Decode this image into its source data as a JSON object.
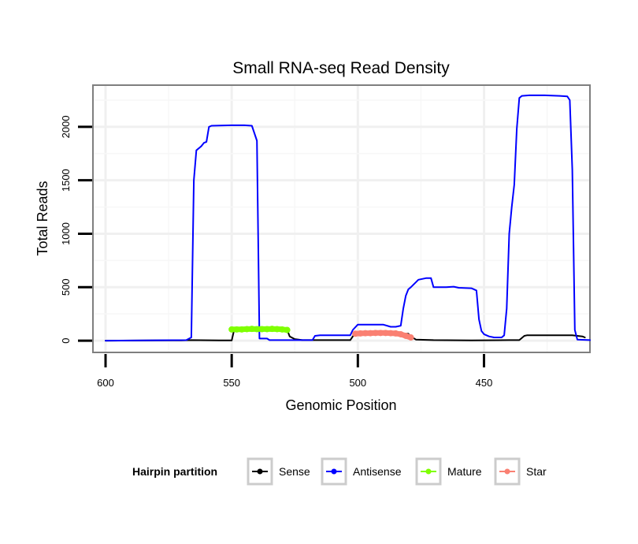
{
  "chart_data": {
    "type": "line",
    "title": "Small RNA-seq Read Density",
    "xlabel": "Genomic Position",
    "ylabel": "Total Reads",
    "x_reversed": true,
    "xlim": [
      605,
      408
    ],
    "ylim": [
      -110,
      2390
    ],
    "x_ticks": [
      600,
      550,
      500,
      450
    ],
    "y_ticks": [
      0,
      500,
      1000,
      1500,
      2000
    ],
    "legend": {
      "title": "Hairpin partition",
      "position": "bottom",
      "entries": [
        "Sense",
        "Antisense",
        "Mature",
        "Star"
      ]
    },
    "series": [
      {
        "name": "Sense",
        "color": "#000000",
        "markers": false,
        "points": [
          [
            600,
            0
          ],
          [
            580,
            2
          ],
          [
            570,
            3
          ],
          [
            566,
            5
          ],
          [
            555,
            3
          ],
          [
            550,
            2
          ],
          [
            549,
            105
          ],
          [
            540,
            105
          ],
          [
            530,
            105
          ],
          [
            528,
            100
          ],
          [
            527,
            40
          ],
          [
            525,
            15
          ],
          [
            522,
            5
          ],
          [
            518,
            5
          ],
          [
            510,
            5
          ],
          [
            503,
            5
          ],
          [
            502,
            40
          ],
          [
            501,
            65
          ],
          [
            495,
            65
          ],
          [
            480,
            65
          ],
          [
            479,
            40
          ],
          [
            477,
            10
          ],
          [
            470,
            5
          ],
          [
            455,
            3
          ],
          [
            440,
            5
          ],
          [
            436,
            5
          ],
          [
            434,
            45
          ],
          [
            433,
            50
          ],
          [
            425,
            50
          ],
          [
            415,
            50
          ],
          [
            411,
            40
          ],
          [
            410,
            30
          ]
        ]
      },
      {
        "name": "Antisense",
        "color": "#0000ff",
        "markers": false,
        "points": [
          [
            600,
            0
          ],
          [
            568,
            5
          ],
          [
            566,
            30
          ],
          [
            565,
            1500
          ],
          [
            564,
            1780
          ],
          [
            562,
            1820
          ],
          [
            561,
            1850
          ],
          [
            560,
            1860
          ],
          [
            559,
            2000
          ],
          [
            558,
            2010
          ],
          [
            550,
            2015
          ],
          [
            545,
            2015
          ],
          [
            542,
            2010
          ],
          [
            540,
            1870
          ],
          [
            539,
            20
          ],
          [
            536,
            20
          ],
          [
            535,
            5
          ],
          [
            525,
            5
          ],
          [
            518,
            5
          ],
          [
            517,
            45
          ],
          [
            515,
            50
          ],
          [
            505,
            50
          ],
          [
            503,
            50
          ],
          [
            502,
            100
          ],
          [
            500,
            150
          ],
          [
            490,
            150
          ],
          [
            487,
            130
          ],
          [
            485,
            130
          ],
          [
            483,
            140
          ],
          [
            482,
            300
          ],
          [
            481,
            420
          ],
          [
            480,
            480
          ],
          [
            479,
            500
          ],
          [
            476,
            570
          ],
          [
            473,
            585
          ],
          [
            471,
            585
          ],
          [
            470,
            500
          ],
          [
            465,
            500
          ],
          [
            462,
            505
          ],
          [
            460,
            495
          ],
          [
            455,
            490
          ],
          [
            453,
            470
          ],
          [
            452,
            200
          ],
          [
            451,
            90
          ],
          [
            450,
            60
          ],
          [
            448,
            40
          ],
          [
            446,
            30
          ],
          [
            443,
            30
          ],
          [
            442,
            50
          ],
          [
            441,
            300
          ],
          [
            440,
            1000
          ],
          [
            439,
            1250
          ],
          [
            438,
            1460
          ],
          [
            437,
            1980
          ],
          [
            436,
            2270
          ],
          [
            435,
            2290
          ],
          [
            432,
            2295
          ],
          [
            426,
            2295
          ],
          [
            420,
            2290
          ],
          [
            417,
            2285
          ],
          [
            416,
            2250
          ],
          [
            415,
            1600
          ],
          [
            414,
            100
          ],
          [
            413,
            10
          ],
          [
            408,
            5
          ]
        ]
      },
      {
        "name": "Mature",
        "color": "#7fff00",
        "markers": true,
        "points": [
          [
            550,
            105
          ],
          [
            548,
            105
          ],
          [
            546,
            105
          ],
          [
            544,
            108
          ],
          [
            542,
            110
          ],
          [
            540,
            108
          ],
          [
            538,
            108
          ],
          [
            536,
            108
          ],
          [
            534,
            110
          ],
          [
            532,
            108
          ],
          [
            530,
            105
          ],
          [
            528,
            100
          ]
        ]
      },
      {
        "name": "Star",
        "color": "#fa8072",
        "markers": true,
        "points": [
          [
            501,
            65
          ],
          [
            499,
            68
          ],
          [
            497,
            70
          ],
          [
            495,
            70
          ],
          [
            493,
            72
          ],
          [
            491,
            72
          ],
          [
            489,
            72
          ],
          [
            487,
            70
          ],
          [
            485,
            68
          ],
          [
            483,
            60
          ],
          [
            481,
            45
          ],
          [
            479,
            30
          ]
        ]
      }
    ]
  }
}
